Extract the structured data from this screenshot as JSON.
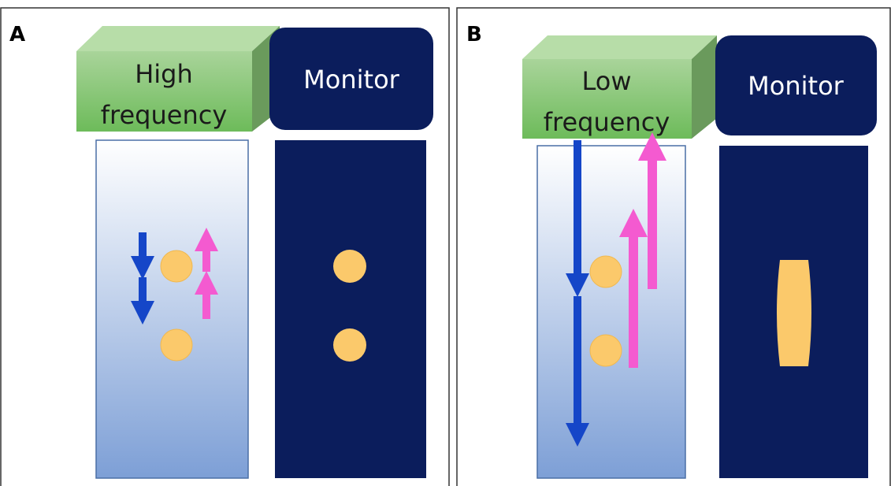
{
  "panels": [
    {
      "label": "A",
      "source_lines": [
        "High",
        "frequency"
      ],
      "monitor": "Monitor"
    },
    {
      "label": "B",
      "source_lines": [
        "Low",
        "frequency"
      ],
      "monitor": "Monitor"
    }
  ]
}
